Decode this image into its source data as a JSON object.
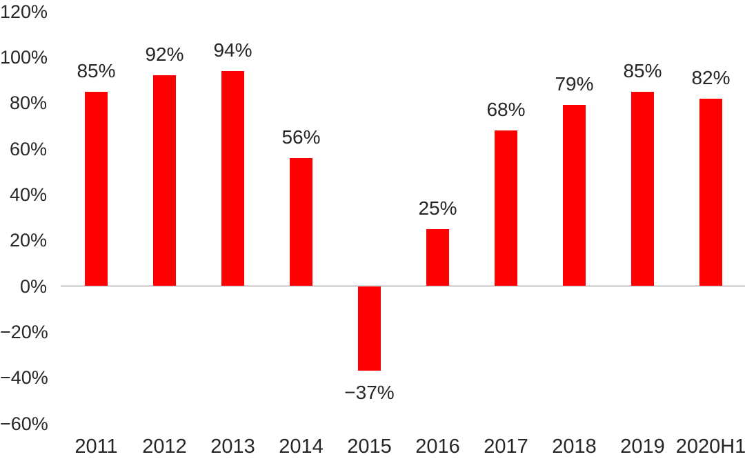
{
  "chart_data": {
    "type": "bar",
    "title": "",
    "xlabel": "",
    "ylabel": "",
    "categories": [
      "2011",
      "2012",
      "2013",
      "2014",
      "2015",
      "2016",
      "2017",
      "2018",
      "2019",
      "2020H1"
    ],
    "values": [
      85,
      92,
      94,
      56,
      -37,
      25,
      68,
      79,
      85,
      82
    ],
    "data_labels": [
      "85%",
      "92%",
      "94%",
      "56%",
      "−37%",
      "25%",
      "68%",
      "79%",
      "85%",
      "82%"
    ],
    "ytick_values": [
      120,
      100,
      80,
      60,
      40,
      20,
      0,
      -20,
      -40,
      -60
    ],
    "ytick_labels": [
      "120%",
      "100%",
      "80%",
      "60%",
      "40%",
      "20%",
      "0%",
      "−20%",
      "−40%",
      "−60%"
    ],
    "ylim": [
      -60,
      120
    ],
    "grid": false,
    "legend": false,
    "colors": {
      "bar": "#fe0000",
      "axis_line": "#d9d9d9",
      "text": "#262626",
      "background": "#ffffff"
    }
  }
}
